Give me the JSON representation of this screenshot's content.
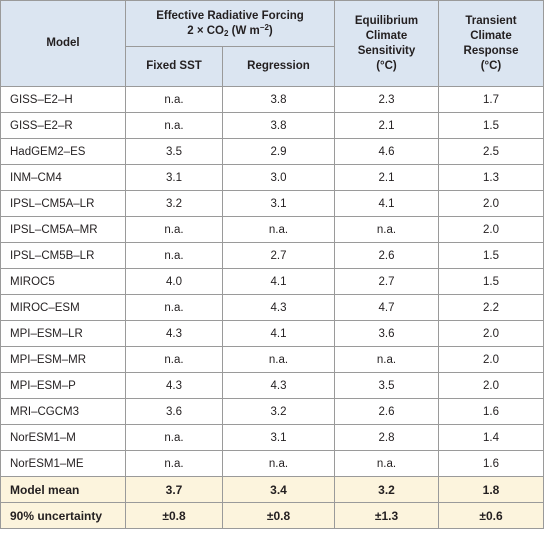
{
  "header": {
    "model": "Model",
    "erf_title": "Effective Radiative Forcing",
    "erf_prefix": "2 × CO",
    "erf_sub": "2",
    "erf_unit_open": " (W m",
    "erf_sup": "−2",
    "erf_unit_close": ")",
    "fixed_sst": "Fixed SST",
    "regression": "Regression",
    "ecs_line1": "Equilibrium",
    "ecs_line2": "Climate",
    "ecs_line3": "Sensitivity",
    "ecs_line4": "(°C)",
    "tcr_line1": "Transient",
    "tcr_line2": "Climate",
    "tcr_line3": "Response",
    "tcr_line4": "(°C)"
  },
  "rows": [
    {
      "model": "GISS–E2–H",
      "fixed": "n.a.",
      "reg": "3.8",
      "ecs": "2.3",
      "tcr": "1.7"
    },
    {
      "model": "GISS–E2–R",
      "fixed": "n.a.",
      "reg": "3.8",
      "ecs": "2.1",
      "tcr": "1.5"
    },
    {
      "model": "HadGEM2–ES",
      "fixed": "3.5",
      "reg": "2.9",
      "ecs": "4.6",
      "tcr": "2.5"
    },
    {
      "model": "INM–CM4",
      "fixed": "3.1",
      "reg": "3.0",
      "ecs": "2.1",
      "tcr": "1.3"
    },
    {
      "model": "IPSL–CM5A–LR",
      "fixed": "3.2",
      "reg": "3.1",
      "ecs": "4.1",
      "tcr": "2.0"
    },
    {
      "model": "IPSL–CM5A–MR",
      "fixed": "n.a.",
      "reg": "n.a.",
      "ecs": "n.a.",
      "tcr": "2.0"
    },
    {
      "model": "IPSL–CM5B–LR",
      "fixed": "n.a.",
      "reg": "2.7",
      "ecs": "2.6",
      "tcr": "1.5"
    },
    {
      "model": "MIROC5",
      "fixed": "4.0",
      "reg": "4.1",
      "ecs": "2.7",
      "tcr": "1.5"
    },
    {
      "model": "MIROC–ESM",
      "fixed": "n.a.",
      "reg": "4.3",
      "ecs": "4.7",
      "tcr": "2.2"
    },
    {
      "model": "MPI–ESM–LR",
      "fixed": "4.3",
      "reg": "4.1",
      "ecs": "3.6",
      "tcr": "2.0"
    },
    {
      "model": "MPI–ESM–MR",
      "fixed": "n.a.",
      "reg": "n.a.",
      "ecs": "n.a.",
      "tcr": "2.0"
    },
    {
      "model": "MPI–ESM–P",
      "fixed": "4.3",
      "reg": "4.3",
      "ecs": "3.5",
      "tcr": "2.0"
    },
    {
      "model": "MRI–CGCM3",
      "fixed": "3.6",
      "reg": "3.2",
      "ecs": "2.6",
      "tcr": "1.6"
    },
    {
      "model": "NorESM1–M",
      "fixed": "n.a.",
      "reg": "3.1",
      "ecs": "2.8",
      "tcr": "1.4"
    },
    {
      "model": "NorESM1–ME",
      "fixed": "n.a.",
      "reg": "n.a.",
      "ecs": "n.a.",
      "tcr": "1.6"
    }
  ],
  "summary": [
    {
      "model": "Model mean",
      "fixed": "3.7",
      "reg": "3.4",
      "ecs": "3.2",
      "tcr": "1.8"
    },
    {
      "model": "90% uncertainty",
      "fixed": "±0.8",
      "reg": "±0.8",
      "ecs": "±1.3",
      "tcr": "±0.6"
    }
  ],
  "colors": {
    "header_bg": "#dbe5f1",
    "summary_bg": "#fcf4dd",
    "border": "#9a9a9a",
    "text": "#231f20"
  }
}
